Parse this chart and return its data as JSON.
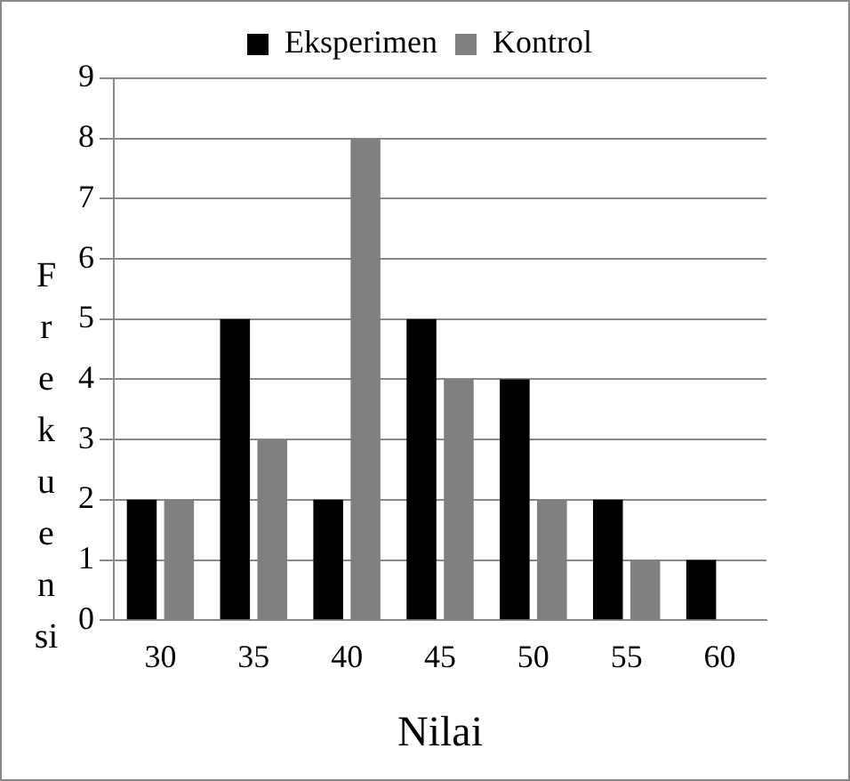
{
  "chart_data": {
    "type": "bar",
    "xlabel": "Nilai",
    "ylabel": "Frekuensi",
    "categories": [
      "30",
      "35",
      "40",
      "45",
      "50",
      "55",
      "60"
    ],
    "series": [
      {
        "name": "Eksperimen",
        "color": "#000000",
        "values": [
          2,
          5,
          2,
          5,
          4,
          2,
          1
        ]
      },
      {
        "name": "Kontrol",
        "color": "#808080",
        "values": [
          2,
          3,
          8,
          4,
          2,
          1,
          0
        ]
      }
    ],
    "ylim": [
      0,
      9
    ],
    "yticks": [
      0,
      1,
      2,
      3,
      4,
      5,
      6,
      7,
      8,
      9
    ],
    "grid": "y",
    "legend": "top"
  }
}
